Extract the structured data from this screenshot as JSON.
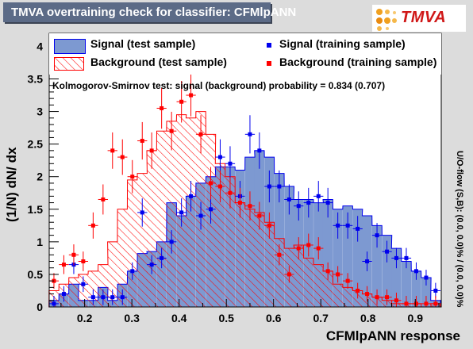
{
  "title": "TMVA overtraining check for classifier: CFMlpANN",
  "logo_text": "TMVA",
  "ks_text": "Kolmogorov-Smirnov test: signal (background) probability = 0.834 (0.707)",
  "overflow_text": "U/O-flow (S,B): (0.0, 0.0)% / (0.0, 0.0)%",
  "legend": {
    "sig_test": "Signal (test sample)",
    "sig_train": "Signal (training sample)",
    "bkg_test": "Background (test sample)",
    "bkg_train": "Background (training sample)"
  },
  "colors": {
    "signal_fill": "#7d99d1",
    "signal_line": "#0000ee",
    "background_hatch": "#ff0000",
    "background_line": "#ff0000",
    "title_bar": "#5c6b87"
  },
  "chart_data": {
    "type": "histogram",
    "xlabel": "CFMlpANN response",
    "ylabel": "(1/N) dN/ dx",
    "xlim": [
      0.125,
      0.955
    ],
    "ylim": [
      0,
      4.2
    ],
    "xticks": [
      0.2,
      0.3,
      0.4,
      0.5,
      0.6,
      0.7,
      0.8,
      0.9
    ],
    "yticks": [
      0,
      0.5,
      1,
      1.5,
      2,
      2.5,
      3,
      3.5,
      4
    ],
    "bin_width": 0.0207,
    "bin_centers": [
      0.135,
      0.156,
      0.177,
      0.197,
      0.218,
      0.239,
      0.259,
      0.28,
      0.301,
      0.322,
      0.342,
      0.363,
      0.384,
      0.405,
      0.425,
      0.446,
      0.467,
      0.487,
      0.508,
      0.529,
      0.55,
      0.57,
      0.591,
      0.612,
      0.633,
      0.653,
      0.674,
      0.695,
      0.715,
      0.736,
      0.757,
      0.778,
      0.798,
      0.819,
      0.84,
      0.86,
      0.881,
      0.902,
      0.923,
      0.943
    ],
    "series": [
      {
        "name": "Signal (test sample)",
        "kind": "filled",
        "values": [
          0.1,
          0.2,
          0.35,
          0.1,
          0.1,
          0.3,
          0.1,
          0.35,
          0.55,
          0.82,
          0.85,
          1.0,
          1.6,
          1.4,
          1.7,
          1.9,
          2.0,
          2.15,
          2.15,
          2.1,
          2.3,
          2.4,
          2.3,
          2.05,
          1.85,
          1.65,
          1.65,
          1.6,
          1.65,
          1.5,
          1.55,
          1.5,
          1.4,
          1.25,
          1.1,
          0.9,
          0.7,
          0.55,
          0.45,
          0.1
        ]
      },
      {
        "name": "Background (test sample)",
        "kind": "hatched",
        "values": [
          0.25,
          0.35,
          0.45,
          0.5,
          0.55,
          0.65,
          1.0,
          1.5,
          1.95,
          2.05,
          2.4,
          2.7,
          2.85,
          2.95,
          2.9,
          3.0,
          2.65,
          2.2,
          2.0,
          1.6,
          1.5,
          1.45,
          1.3,
          1.05,
          0.9,
          0.95,
          0.75,
          0.65,
          0.55,
          0.35,
          0.3,
          0.25,
          0.2,
          0.15,
          0.1,
          0.05,
          0.05,
          0.05,
          0.0,
          0.05
        ]
      },
      {
        "name": "Signal (training sample)",
        "kind": "points",
        "values": [
          0.05,
          0.2,
          0.65,
          0.35,
          0.15,
          0.15,
          0.15,
          0.15,
          0.55,
          1.45,
          0.65,
          0.75,
          1.0,
          1.45,
          1.7,
          1.4,
          1.5,
          2.3,
          2.2,
          1.7,
          2.65,
          2.4,
          1.85,
          1.85,
          1.65,
          1.55,
          1.6,
          1.7,
          1.6,
          1.25,
          1.25,
          1.2,
          0.7,
          1.1,
          0.85,
          0.75,
          0.75,
          0.55,
          0.45,
          0.25
        ]
      },
      {
        "name": "Background (training sample)",
        "kind": "points",
        "values": [
          0.4,
          0.65,
          0.8,
          0.7,
          1.25,
          1.65,
          2.4,
          2.3,
          2.0,
          2.55,
          2.4,
          3.05,
          2.7,
          3.15,
          3.25,
          2.65,
          1.9,
          1.85,
          1.75,
          1.6,
          1.55,
          1.4,
          1.25,
          0.8,
          0.5,
          0.9,
          0.95,
          0.9,
          0.55,
          0.5,
          0.4,
          0.25,
          0.2,
          0.15,
          0.15,
          0.1,
          0.05,
          0.05,
          0.05,
          0.05
        ]
      }
    ]
  }
}
